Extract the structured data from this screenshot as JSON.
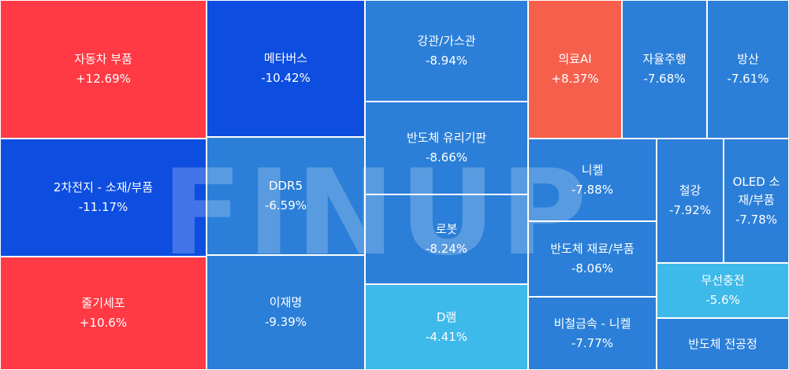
{
  "chart_data": {
    "type": "treemap",
    "colors": {
      "strong_up": "#ff3a45",
      "up": "#f65f4c",
      "strong_down": "#0d4ee0",
      "down": "#2b7fd8",
      "mild_down": "#3db9ea"
    },
    "tiles": [
      {
        "id": "auto-parts",
        "label": "자동차 부품",
        "value": "+12.69%",
        "change": 12.69,
        "color": "#ff3a45"
      },
      {
        "id": "secondary-battery",
        "label": "2차전지 - 소재/부품",
        "value": "-11.17%",
        "change": -11.17,
        "color": "#0d4ee0"
      },
      {
        "id": "stem-cell",
        "label": "줄기세포",
        "value": "+10.6%",
        "change": 10.6,
        "color": "#ff3a45"
      },
      {
        "id": "metaverse",
        "label": "메타버스",
        "value": "-10.42%",
        "change": -10.42,
        "color": "#0d4ee0"
      },
      {
        "id": "ddr5",
        "label": "DDR5",
        "value": "-6.59%",
        "change": -6.59,
        "color": "#2b7fd8"
      },
      {
        "id": "lee-jae-myung",
        "label": "이재명",
        "value": "-9.39%",
        "change": -9.39,
        "color": "#2b7fd8"
      },
      {
        "id": "steel-pipe",
        "label": "강관/가스관",
        "value": "-8.94%",
        "change": -8.94,
        "color": "#2b7fd8"
      },
      {
        "id": "glass-substrate",
        "label": "반도체 유리기판",
        "value": "-8.66%",
        "change": -8.66,
        "color": "#2b7fd8"
      },
      {
        "id": "robot",
        "label": "로봇",
        "value": "-8.24%",
        "change": -8.24,
        "color": "#2b7fd8"
      },
      {
        "id": "dram",
        "label": "D램",
        "value": "-4.41%",
        "change": -4.41,
        "color": "#3db9ea"
      },
      {
        "id": "medical-ai",
        "label": "의료AI",
        "value": "+8.37%",
        "change": 8.37,
        "color": "#f65f4c"
      },
      {
        "id": "autonomous-driving",
        "label": "자율주행",
        "value": "-7.68%",
        "change": -7.68,
        "color": "#2b7fd8"
      },
      {
        "id": "defense",
        "label": "방산",
        "value": "-7.61%",
        "change": -7.61,
        "color": "#2b7fd8"
      },
      {
        "id": "nickel",
        "label": "니켈",
        "value": "-7.88%",
        "change": -7.88,
        "color": "#2b7fd8"
      },
      {
        "id": "semi-materials",
        "label": "반도체 재료/부품",
        "value": "-8.06%",
        "change": -8.06,
        "color": "#2b7fd8"
      },
      {
        "id": "nonferrous-nickel",
        "label": "비철금속 - 니켈",
        "value": "-7.77%",
        "change": -7.77,
        "color": "#2b7fd8"
      },
      {
        "id": "steel",
        "label": "철강",
        "value": "-7.92%",
        "change": -7.92,
        "color": "#2b7fd8"
      },
      {
        "id": "oled-materials",
        "label": "OLED 소재/부품",
        "value": "-7.78%",
        "change": -7.78,
        "color": "#2b7fd8"
      },
      {
        "id": "wireless-charging",
        "label": "무선충전",
        "value": "-5.6%",
        "change": -5.6,
        "color": "#3db9ea"
      },
      {
        "id": "semi-front-end",
        "label": "반도체 전공정",
        "value": "",
        "change": null,
        "color": "#2b7fd8"
      }
    ]
  },
  "watermark": {
    "text": "FINUP"
  }
}
